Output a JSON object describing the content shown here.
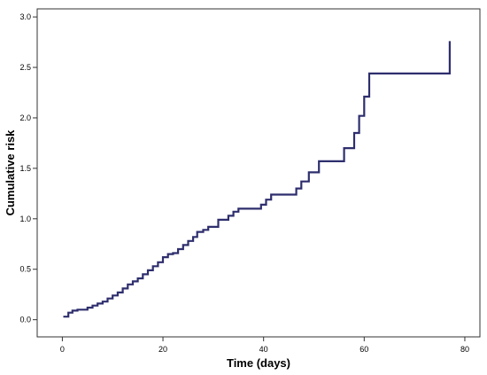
{
  "chart_data": {
    "type": "line",
    "step": true,
    "xlabel": "Time (days)",
    "ylabel": "Cumulative risk",
    "xlim": [
      -5,
      83
    ],
    "ylim": [
      -0.17,
      3.08
    ],
    "x_ticks": [
      0,
      20,
      40,
      60,
      80
    ],
    "x_tick_labels": [
      "0",
      "20",
      "40",
      "60",
      "80"
    ],
    "y_ticks": [
      0.0,
      0.5,
      1.0,
      1.5,
      2.0,
      2.5,
      3.0
    ],
    "y_tick_labels": [
      "0.0",
      "0.5",
      "1.0",
      "1.5",
      "2.0",
      "2.5",
      "3.0"
    ],
    "grid": false,
    "line_color": "#2e2e6e",
    "series": [
      {
        "points": [
          [
            0.2,
            0.03
          ],
          [
            1.2,
            0.07
          ],
          [
            2.0,
            0.09
          ],
          [
            3.0,
            0.1
          ],
          [
            5.0,
            0.12
          ],
          [
            6.0,
            0.14
          ],
          [
            7.0,
            0.16
          ],
          [
            8.0,
            0.18
          ],
          [
            9.0,
            0.21
          ],
          [
            10.0,
            0.24
          ],
          [
            11.0,
            0.27
          ],
          [
            12.0,
            0.31
          ],
          [
            13.0,
            0.35
          ],
          [
            14.0,
            0.38
          ],
          [
            15.0,
            0.41
          ],
          [
            16.0,
            0.45
          ],
          [
            17.0,
            0.49
          ],
          [
            18.0,
            0.53
          ],
          [
            19.0,
            0.57
          ],
          [
            20.0,
            0.62
          ],
          [
            21.0,
            0.65
          ],
          [
            22.0,
            0.66
          ],
          [
            23.0,
            0.7
          ],
          [
            24.0,
            0.74
          ],
          [
            25.0,
            0.78
          ],
          [
            26.0,
            0.82
          ],
          [
            26.8,
            0.87
          ],
          [
            28.0,
            0.89
          ],
          [
            29.0,
            0.92
          ],
          [
            31.0,
            0.99
          ],
          [
            33.0,
            1.03
          ],
          [
            34.0,
            1.07
          ],
          [
            35.0,
            1.1
          ],
          [
            39.5,
            1.14
          ],
          [
            40.5,
            1.19
          ],
          [
            41.5,
            1.24
          ],
          [
            46.5,
            1.3
          ],
          [
            47.5,
            1.37
          ],
          [
            49.0,
            1.46
          ],
          [
            51.0,
            1.57
          ],
          [
            56.0,
            1.7
          ],
          [
            58.0,
            1.85
          ],
          [
            59.0,
            2.02
          ],
          [
            60.0,
            2.21
          ],
          [
            61.0,
            2.44
          ],
          [
            77.0,
            2.76
          ]
        ]
      }
    ]
  }
}
